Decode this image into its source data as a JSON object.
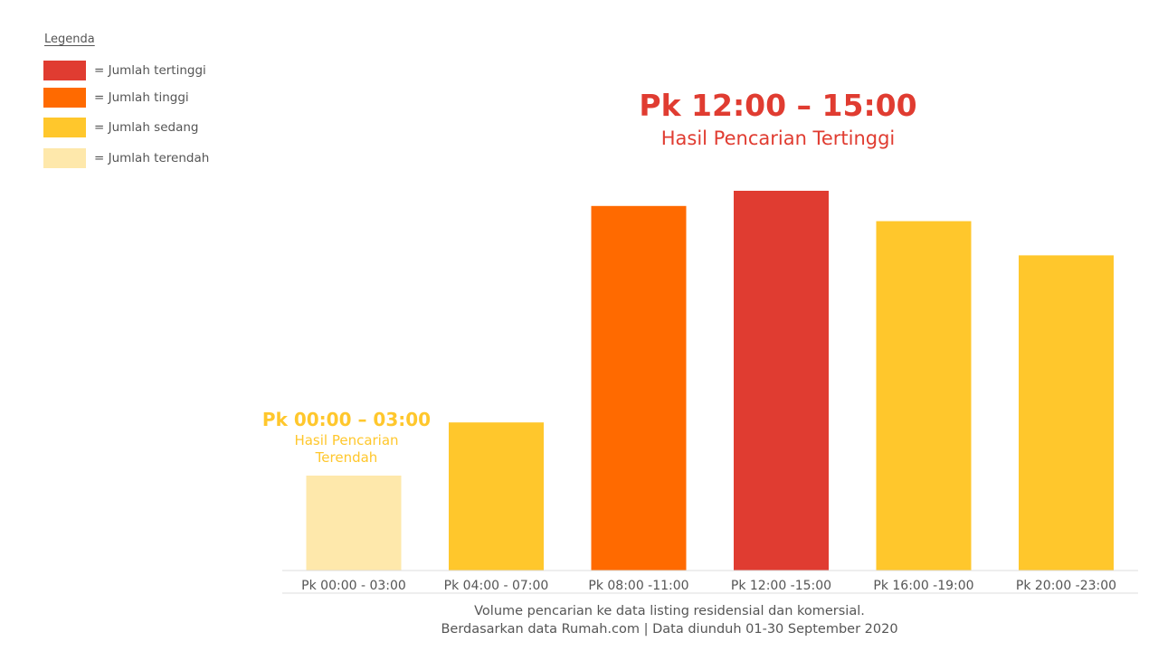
{
  "legend": {
    "title": "Legenda",
    "items": [
      {
        "label": "= Jumlah tertinggi",
        "color": "#e03c31"
      },
      {
        "label": "= Jumlah tinggi",
        "color": "#ff6a00"
      },
      {
        "label": "= Jumlah sedang",
        "color": "#ffc72c"
      },
      {
        "label": "= Jumlah terendah",
        "color": "#fee8ab"
      }
    ]
  },
  "callouts": {
    "high": {
      "title": "Pk 12:00 – 15:00",
      "subtitle": "Hasil Pencarian Tertinggi",
      "color": "#e03c31"
    },
    "low": {
      "title": "Pk 00:00 – 03:00",
      "subtitle_line1": "Hasil Pencarian",
      "subtitle_line2": "Terendah",
      "color": "#ffc72c"
    }
  },
  "chart_data": {
    "type": "bar",
    "categories": [
      "Pk 00:00 - 03:00",
      "Pk 04:00 - 07:00",
      "Pk 08:00 -11:00",
      "Pk 12:00 -15:00",
      "Pk 16:00 -19:00",
      "Pk 20:00 -23:00"
    ],
    "values": [
      25,
      39,
      96,
      100,
      92,
      83
    ],
    "level": [
      "terendah",
      "sedang",
      "tinggi",
      "tertinggi",
      "sedang",
      "sedang"
    ],
    "colors": [
      "#fee8ab",
      "#ffc72c",
      "#ff6a00",
      "#e03c31",
      "#ffc72c",
      "#ffc72c"
    ],
    "ylim": [
      0,
      100
    ],
    "grid": false,
    "legend_position": "top-left"
  },
  "footer": {
    "line1": "Volume pencarian ke data listing residensial dan komersial.",
    "line2": "Berdasarkan data Rumah.com | Data diunduh 01-30 September 2020"
  }
}
